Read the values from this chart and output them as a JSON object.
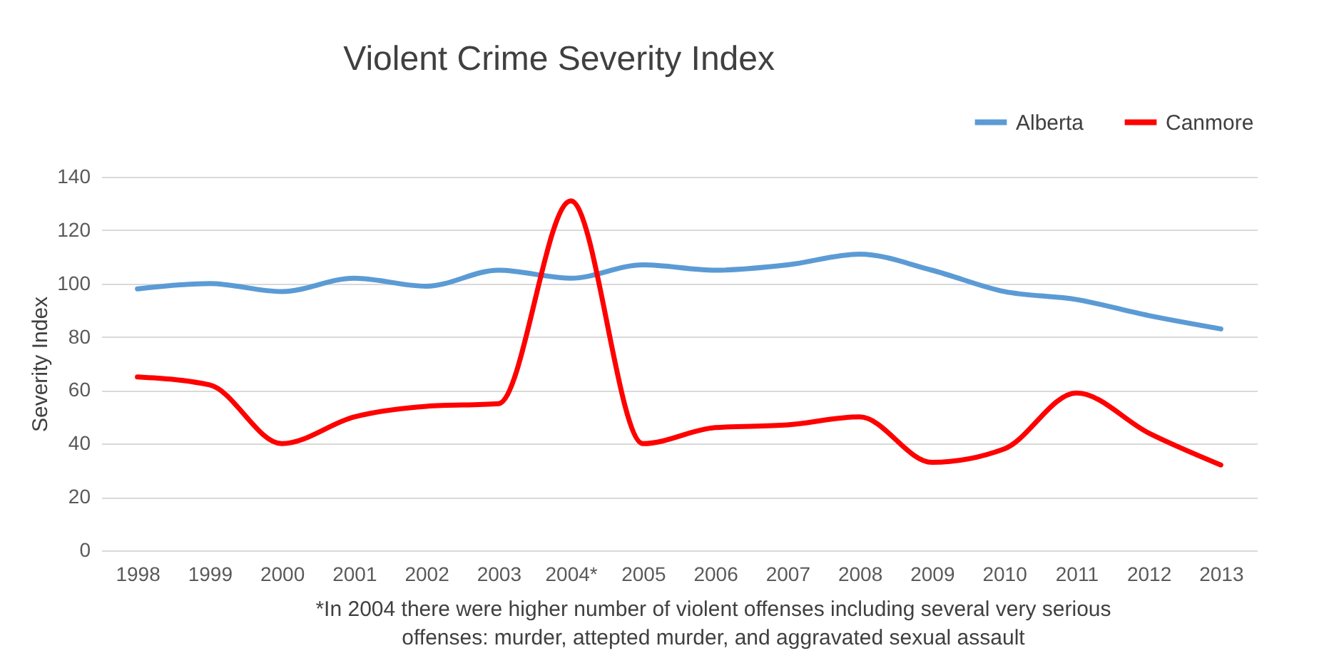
{
  "chart_data": {
    "type": "line",
    "title": "Violent Crime Severity Index",
    "ylabel": "Severity Index",
    "categories": [
      "1998",
      "1999",
      "2000",
      "2001",
      "2002",
      "2003",
      "2004*",
      "2005",
      "2006",
      "2007",
      "2008",
      "2009",
      "2010",
      "2011",
      "2012",
      "2013"
    ],
    "series": [
      {
        "name": "Alberta",
        "color": "#5b9bd5",
        "values": [
          98,
          100,
          97,
          102,
          99,
          105,
          102,
          107,
          105,
          107,
          111,
          105,
          97,
          94,
          88,
          83
        ]
      },
      {
        "name": "Canmore",
        "color": "#ff0000",
        "values": [
          65,
          62,
          40,
          50,
          54,
          55,
          131,
          40,
          46,
          47,
          50,
          33,
          38,
          59,
          44,
          32
        ]
      }
    ],
    "ylim": [
      0,
      140
    ],
    "yticks": [
      0,
      20,
      40,
      60,
      80,
      100,
      120,
      140
    ],
    "grid": "y",
    "legend": "top right",
    "annotations": [
      "*In 2004 there were higher number of violent offenses including several very serious offenses: murder, attepted murder, and aggravated sexual assault"
    ]
  }
}
